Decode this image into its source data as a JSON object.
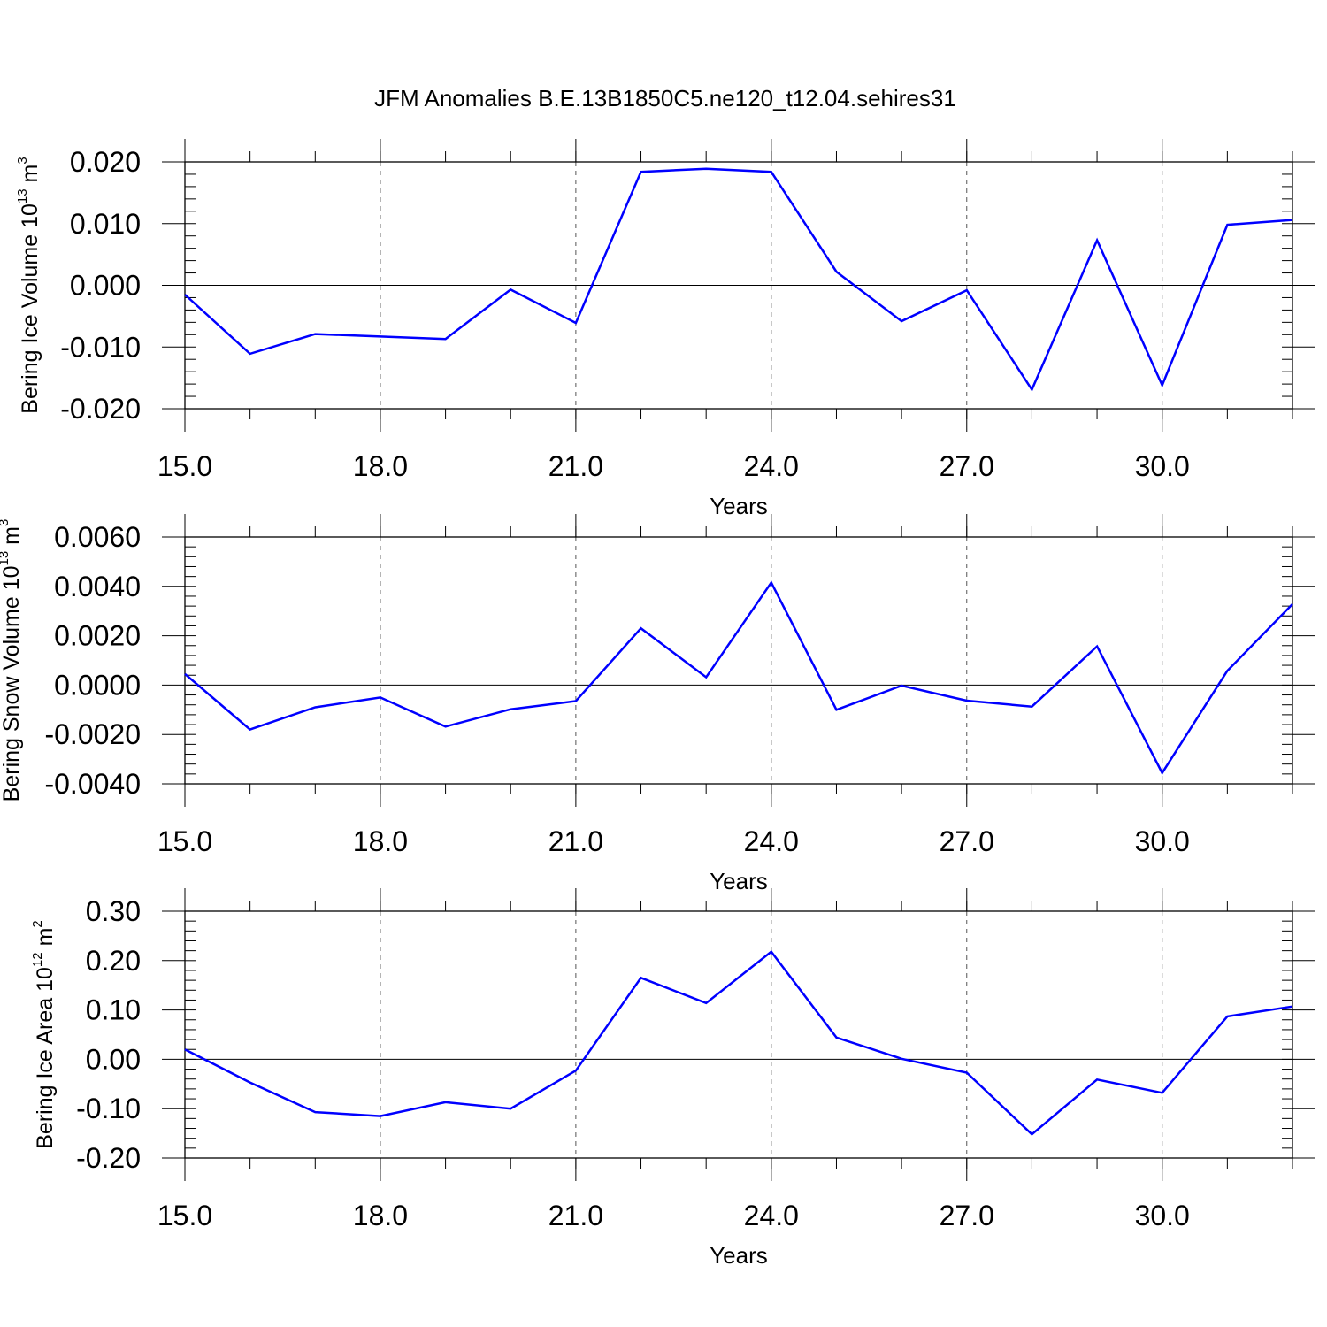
{
  "title": "JFM Anomalies B.E.13B1850C5.ne120_t12.04.sehires31",
  "chart_data": [
    {
      "type": "line",
      "xlabel": "Years",
      "ylabel": {
        "text": "Bering Ice Volume 10",
        "exp": "13",
        "unit": " m",
        "unit_exp": "3"
      },
      "xlim": [
        15,
        32
      ],
      "ylim": [
        -0.02,
        0.02
      ],
      "x_ticks": [
        15,
        18,
        21,
        24,
        27,
        30
      ],
      "x_tick_labels": [
        "15.0",
        "18.0",
        "21.0",
        "24.0",
        "27.0",
        "30.0"
      ],
      "y_ticks": [
        -0.02,
        -0.01,
        0.0,
        0.01,
        0.02
      ],
      "y_tick_labels": [
        "-0.020",
        "-0.010",
        "0.000",
        "0.010",
        "0.020"
      ],
      "x_minor_step": 1,
      "y_minor_step": 0.002,
      "series": [
        {
          "name": "Bering Ice Volume",
          "color": "#0000ff",
          "x": [
            15,
            16,
            17,
            18,
            19,
            20,
            21,
            22,
            23,
            24,
            25,
            26,
            27,
            28,
            29,
            30,
            31,
            32
          ],
          "values": [
            -0.0015,
            -0.0111,
            -0.0079,
            -0.0083,
            -0.0087,
            -0.0007,
            -0.0061,
            0.0184,
            0.0189,
            0.0184,
            0.0022,
            -0.0058,
            -0.0008,
            -0.0169,
            0.0073,
            -0.0162,
            0.0098,
            0.0106
          ]
        }
      ]
    },
    {
      "type": "line",
      "xlabel": "Years",
      "ylabel": {
        "text": "Bering Snow Volume 10",
        "exp": "13",
        "unit": " m",
        "unit_exp": "3"
      },
      "xlim": [
        15,
        32
      ],
      "ylim": [
        -0.004,
        0.006
      ],
      "x_ticks": [
        15,
        18,
        21,
        24,
        27,
        30
      ],
      "x_tick_labels": [
        "15.0",
        "18.0",
        "21.0",
        "24.0",
        "27.0",
        "30.0"
      ],
      "y_ticks": [
        -0.004,
        -0.002,
        0.0,
        0.002,
        0.004,
        0.006
      ],
      "y_tick_labels": [
        "-0.0040",
        "-0.0020",
        "0.0000",
        "0.0020",
        "0.0040",
        "0.0060"
      ],
      "x_minor_step": 1,
      "y_minor_step": 0.0004,
      "series": [
        {
          "name": "Bering Snow Volume",
          "color": "#0000ff",
          "x": [
            15,
            16,
            17,
            18,
            19,
            20,
            21,
            22,
            23,
            24,
            25,
            26,
            27,
            28,
            29,
            30,
            31,
            32
          ],
          "values": [
            0.00045,
            -0.0018,
            -0.0009,
            -0.0005,
            -0.00168,
            -0.00098,
            -0.00065,
            0.0023,
            0.00032,
            0.00415,
            -0.001,
            -2e-05,
            -0.00063,
            -0.00087,
            0.00157,
            -0.00356,
            0.00058,
            0.00328
          ]
        }
      ]
    },
    {
      "type": "line",
      "xlabel": "Years",
      "ylabel": {
        "text": "Bering Ice Area 10",
        "exp": "12",
        "unit": " m",
        "unit_exp": "2"
      },
      "xlim": [
        15,
        32
      ],
      "ylim": [
        -0.2,
        0.3
      ],
      "x_ticks": [
        15,
        18,
        21,
        24,
        27,
        30
      ],
      "x_tick_labels": [
        "15.0",
        "18.0",
        "21.0",
        "24.0",
        "27.0",
        "30.0"
      ],
      "y_ticks": [
        -0.2,
        -0.1,
        0.0,
        0.1,
        0.2,
        0.3
      ],
      "y_tick_labels": [
        "-0.20",
        "-0.10",
        "0.00",
        "0.10",
        "0.20",
        "0.30"
      ],
      "x_minor_step": 1,
      "y_minor_step": 0.02,
      "series": [
        {
          "name": "Bering Ice Area",
          "color": "#0000ff",
          "x": [
            15,
            16,
            17,
            18,
            19,
            20,
            21,
            22,
            23,
            24,
            25,
            26,
            27,
            28,
            29,
            30,
            31,
            32
          ],
          "values": [
            0.02,
            -0.047,
            -0.107,
            -0.115,
            -0.087,
            -0.1,
            -0.023,
            0.165,
            0.114,
            0.218,
            0.044,
            0.001,
            -0.027,
            -0.152,
            -0.041,
            -0.068,
            0.087,
            0.107
          ]
        }
      ]
    }
  ]
}
